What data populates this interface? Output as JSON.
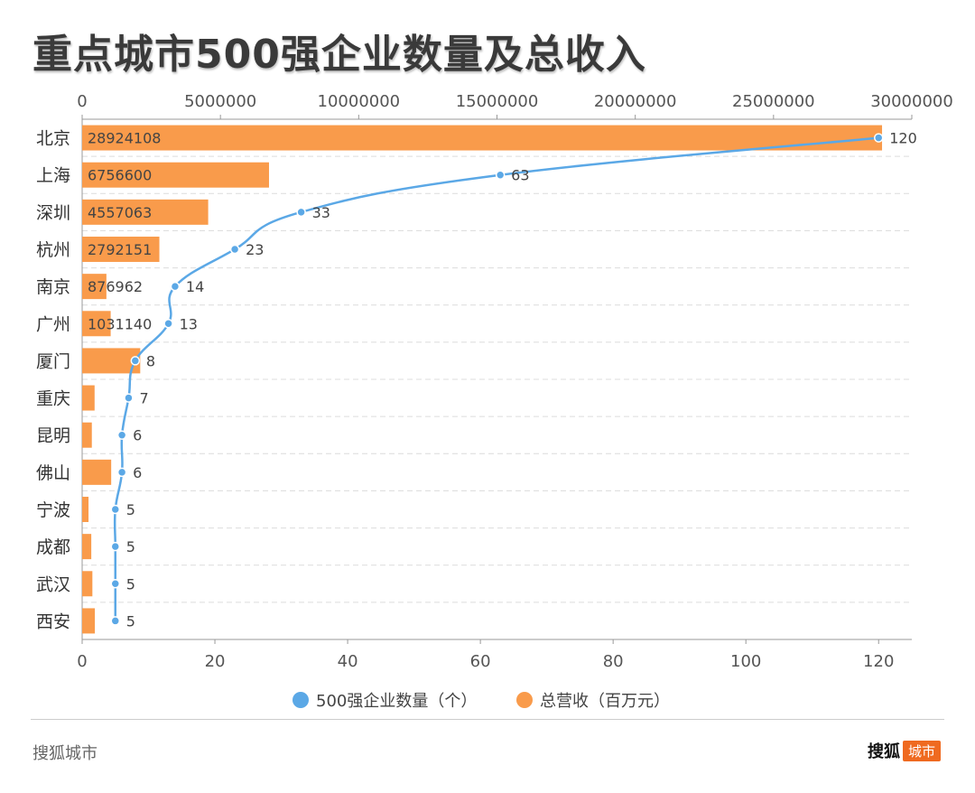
{
  "title": "重点城市500强企业数量及总收入",
  "source": "搜狐城市",
  "brand": {
    "main": "搜狐",
    "badge": "城市"
  },
  "colors": {
    "bar": "#f99b4b",
    "line": "#5ba8e6",
    "badge": "#ef6a20"
  },
  "chart_data": {
    "type": "bar",
    "orientation": "horizontal",
    "categories": [
      "北京",
      "上海",
      "深圳",
      "杭州",
      "南京",
      "广州",
      "厦门",
      "重庆",
      "昆明",
      "佛山",
      "宁波",
      "成都",
      "武汉",
      "西安"
    ],
    "series": [
      {
        "name": "500强企业数量（个）",
        "type": "line",
        "axis": "bottom",
        "values": [
          120,
          63,
          33,
          23,
          14,
          13,
          8,
          7,
          6,
          6,
          5,
          5,
          5,
          5
        ],
        "labels": [
          "120",
          "63",
          "33",
          "23",
          "14",
          "13",
          "8",
          "7",
          "6",
          "6",
          "5",
          "5",
          "5",
          "5"
        ]
      },
      {
        "name": "总营收（百万元）",
        "type": "bar",
        "axis": "top",
        "values": [
          28924108,
          6756600,
          4557063,
          2792151,
          876962,
          1031140,
          2100000,
          450000,
          350000,
          1050000,
          230000,
          330000,
          370000,
          460000
        ],
        "labels": [
          "28924108",
          "6756600",
          "4557063",
          "2792151",
          "876962",
          "1031140"
        ]
      }
    ],
    "top_axis": {
      "ticks": [
        "0",
        "5000000",
        "10000000",
        "15000000",
        "20000000",
        "25000000",
        "30000000"
      ],
      "range": [
        0,
        30000000
      ]
    },
    "bottom_axis": {
      "ticks": [
        "0",
        "20",
        "40",
        "60",
        "80",
        "100",
        "120"
      ],
      "range": [
        0,
        125
      ]
    },
    "legend": [
      {
        "label": "500强企业数量（个）",
        "color": "#5ba8e6"
      },
      {
        "label": "总营收（百万元）",
        "color": "#f99b4b"
      }
    ],
    "legend_position": "bottom",
    "grid": "dashed horizontal"
  }
}
